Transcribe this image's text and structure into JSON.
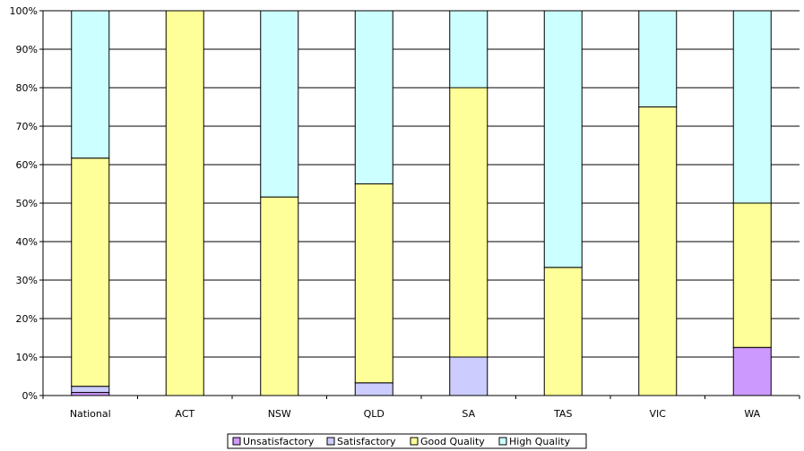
{
  "chart_data": {
    "type": "bar",
    "stacked": true,
    "percent": true,
    "categories": [
      "National",
      "ACT",
      "NSW",
      "QLD",
      "SA",
      "TAS",
      "VIC",
      "WA"
    ],
    "series": [
      {
        "name": "Unsatisfactory",
        "color": "#cc99ff",
        "values": [
          0.8,
          0,
          0,
          0,
          0,
          0,
          0,
          12.5
        ]
      },
      {
        "name": "Satisfactory",
        "color": "#ccccff",
        "values": [
          1.6,
          0,
          0,
          3.3,
          10,
          0,
          0,
          0
        ]
      },
      {
        "name": "Good Quality",
        "color": "#ffff99",
        "values": [
          59.3,
          100,
          51.6,
          51.7,
          70,
          33.3,
          75,
          37.5
        ]
      },
      {
        "name": "High Quality",
        "color": "#ccffff",
        "values": [
          38.3,
          0,
          48.4,
          45,
          20,
          66.7,
          25,
          50
        ]
      }
    ],
    "ylim": [
      0,
      100
    ],
    "yticks": [
      "0%",
      "10%",
      "20%",
      "30%",
      "40%",
      "50%",
      "60%",
      "70%",
      "80%",
      "90%",
      "100%"
    ],
    "grid": true,
    "legend_position": "bottom"
  }
}
